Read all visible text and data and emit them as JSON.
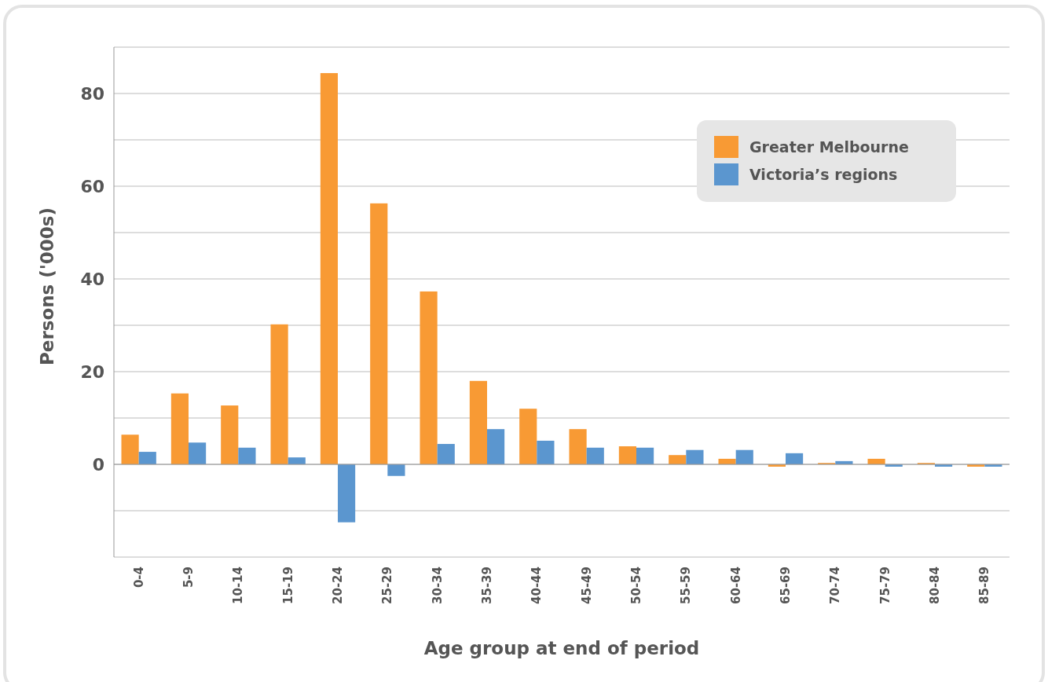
{
  "chart_data": {
    "type": "bar",
    "xlabel": "Age group at end of period",
    "ylabel": "Persons ('000s)",
    "categories": [
      "0-4",
      "5-9",
      "10-14",
      "15-19",
      "20-24",
      "25-29",
      "30-34",
      "35-39",
      "40-44",
      "45-49",
      "50-54",
      "55-59",
      "60-64",
      "65-69",
      "70-74",
      "75-79",
      "80-84",
      "85-89"
    ],
    "series": [
      {
        "name": "Greater Melbourne",
        "color": "#f89a34",
        "values": [
          6.4,
          15.3,
          12.7,
          30.2,
          84.4,
          56.3,
          37.3,
          18.0,
          12.0,
          7.6,
          3.9,
          2.0,
          1.2,
          -0.5,
          0.3,
          1.2,
          0.3,
          -0.5
        ]
      },
      {
        "name": "Victoria’s regions",
        "color": "#5b96cf",
        "values": [
          2.7,
          4.7,
          3.6,
          1.5,
          -12.5,
          -2.5,
          4.4,
          7.6,
          5.1,
          3.6,
          3.6,
          3.1,
          3.1,
          2.4,
          0.7,
          -0.5,
          -0.5,
          -0.5
        ]
      }
    ],
    "ylim": [
      -20,
      90
    ],
    "yticks": [
      {
        "value": -20,
        "label": null
      },
      {
        "value": -10,
        "label": null
      },
      0,
      {
        "value": 10,
        "label": null
      },
      20,
      {
        "value": 30,
        "label": null
      },
      40,
      {
        "value": 50,
        "label": null
      },
      60,
      {
        "value": 70,
        "label": null
      },
      80,
      {
        "value": 90,
        "label": null
      }
    ],
    "grid": "y",
    "legend": "top right"
  }
}
